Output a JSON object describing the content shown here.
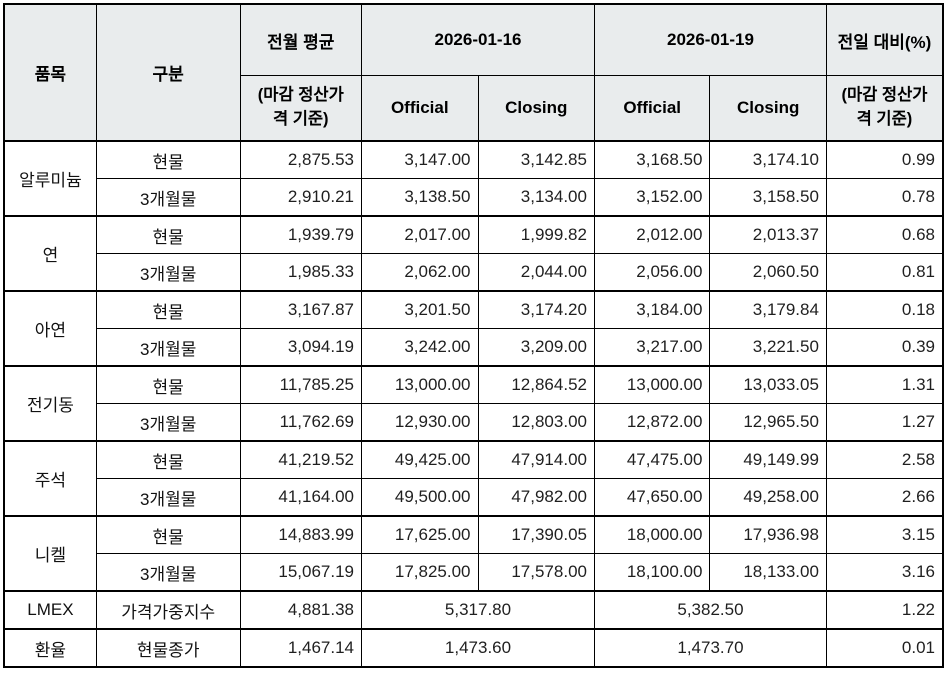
{
  "colors": {
    "header_bg": "#e9eced",
    "border": "#000000",
    "text": "#1f1f1f"
  },
  "table": {
    "header": {
      "item": "품목",
      "category": "구분",
      "prev_avg": "전월 평균",
      "prev_avg_sub": "(마감 정산가\n격 기준)",
      "date1": "2026-01-16",
      "date2": "2026-01-19",
      "official1": "Official",
      "closing1": "Closing",
      "official2": "Official",
      "closing2": "Closing",
      "change": "전일 대비(%)",
      "change_sub": "(마감 정산가\n격 기준)"
    },
    "groups": [
      {
        "item": "알루미늄",
        "rows": [
          {
            "category": "현물",
            "prev_avg": "2,875.53",
            "d1_official": "3,147.00",
            "d1_closing": "3,142.85",
            "d2_official": "3,168.50",
            "d2_closing": "3,174.10",
            "change": "0.99"
          },
          {
            "category": "3개월물",
            "prev_avg": "2,910.21",
            "d1_official": "3,138.50",
            "d1_closing": "3,134.00",
            "d2_official": "3,152.00",
            "d2_closing": "3,158.50",
            "change": "0.78"
          }
        ]
      },
      {
        "item": "연",
        "rows": [
          {
            "category": "현물",
            "prev_avg": "1,939.79",
            "d1_official": "2,017.00",
            "d1_closing": "1,999.82",
            "d2_official": "2,012.00",
            "d2_closing": "2,013.37",
            "change": "0.68"
          },
          {
            "category": "3개월물",
            "prev_avg": "1,985.33",
            "d1_official": "2,062.00",
            "d1_closing": "2,044.00",
            "d2_official": "2,056.00",
            "d2_closing": "2,060.50",
            "change": "0.81"
          }
        ]
      },
      {
        "item": "아연",
        "rows": [
          {
            "category": "현물",
            "prev_avg": "3,167.87",
            "d1_official": "3,201.50",
            "d1_closing": "3,174.20",
            "d2_official": "3,184.00",
            "d2_closing": "3,179.84",
            "change": "0.18"
          },
          {
            "category": "3개월물",
            "prev_avg": "3,094.19",
            "d1_official": "3,242.00",
            "d1_closing": "3,209.00",
            "d2_official": "3,217.00",
            "d2_closing": "3,221.50",
            "change": "0.39"
          }
        ]
      },
      {
        "item": "전기동",
        "rows": [
          {
            "category": "현물",
            "prev_avg": "11,785.25",
            "d1_official": "13,000.00",
            "d1_closing": "12,864.52",
            "d2_official": "13,000.00",
            "d2_closing": "13,033.05",
            "change": "1.31"
          },
          {
            "category": "3개월물",
            "prev_avg": "11,762.69",
            "d1_official": "12,930.00",
            "d1_closing": "12,803.00",
            "d2_official": "12,872.00",
            "d2_closing": "12,965.50",
            "change": "1.27"
          }
        ]
      },
      {
        "item": "주석",
        "rows": [
          {
            "category": "현물",
            "prev_avg": "41,219.52",
            "d1_official": "49,425.00",
            "d1_closing": "47,914.00",
            "d2_official": "47,475.00",
            "d2_closing": "49,149.99",
            "change": "2.58"
          },
          {
            "category": "3개월물",
            "prev_avg": "41,164.00",
            "d1_official": "49,500.00",
            "d1_closing": "47,982.00",
            "d2_official": "47,650.00",
            "d2_closing": "49,258.00",
            "change": "2.66"
          }
        ]
      },
      {
        "item": "니켈",
        "rows": [
          {
            "category": "현물",
            "prev_avg": "14,883.99",
            "d1_official": "17,625.00",
            "d1_closing": "17,390.05",
            "d2_official": "18,000.00",
            "d2_closing": "17,936.98",
            "change": "3.15"
          },
          {
            "category": "3개월물",
            "prev_avg": "15,067.19",
            "d1_official": "17,825.00",
            "d1_closing": "17,578.00",
            "d2_official": "18,100.00",
            "d2_closing": "18,133.00",
            "change": "3.16"
          }
        ]
      }
    ],
    "summary_rows": [
      {
        "item": "LMEX",
        "category": "가격가중지수",
        "prev_avg": "4,881.38",
        "d1": "5,317.80",
        "d2": "5,382.50",
        "change": "1.22"
      },
      {
        "item": "환율",
        "category": "현물종가",
        "prev_avg": "1,467.14",
        "d1": "1,473.60",
        "d2": "1,473.70",
        "change": "0.01"
      }
    ]
  }
}
